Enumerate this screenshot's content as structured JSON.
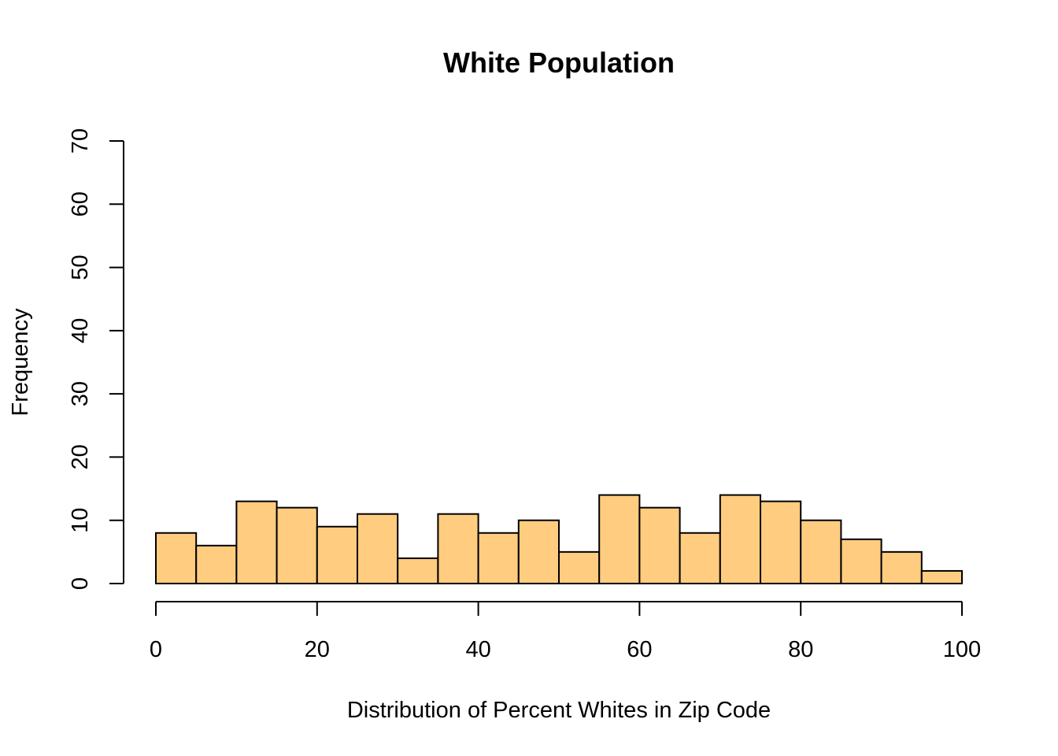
{
  "chart_data": {
    "type": "bar",
    "subtype": "histogram",
    "title": "White Population",
    "xlabel": "Distribution of Percent Whites in Zip Code",
    "ylabel": "Frequency",
    "bin_edges": [
      0,
      5,
      10,
      15,
      20,
      25,
      30,
      35,
      40,
      45,
      50,
      55,
      60,
      65,
      70,
      75,
      80,
      85,
      90,
      95,
      100
    ],
    "values": [
      8,
      6,
      13,
      12,
      9,
      11,
      4,
      11,
      8,
      10,
      5,
      14,
      12,
      8,
      14,
      13,
      10,
      7,
      5,
      2
    ],
    "xlim": [
      0,
      100
    ],
    "ylim": [
      0,
      70
    ],
    "x_ticks": [
      0,
      20,
      40,
      60,
      80,
      100
    ],
    "x_tick_labels": [
      "0",
      "20",
      "40",
      "60",
      "80",
      "100"
    ],
    "y_ticks": [
      0,
      10,
      20,
      30,
      40,
      50,
      60,
      70
    ],
    "y_tick_labels": [
      "0",
      "10",
      "20",
      "30",
      "40",
      "50",
      "60",
      "70"
    ],
    "grid": false,
    "bar_color": "#FFCC80",
    "edge_color": "#000000"
  }
}
